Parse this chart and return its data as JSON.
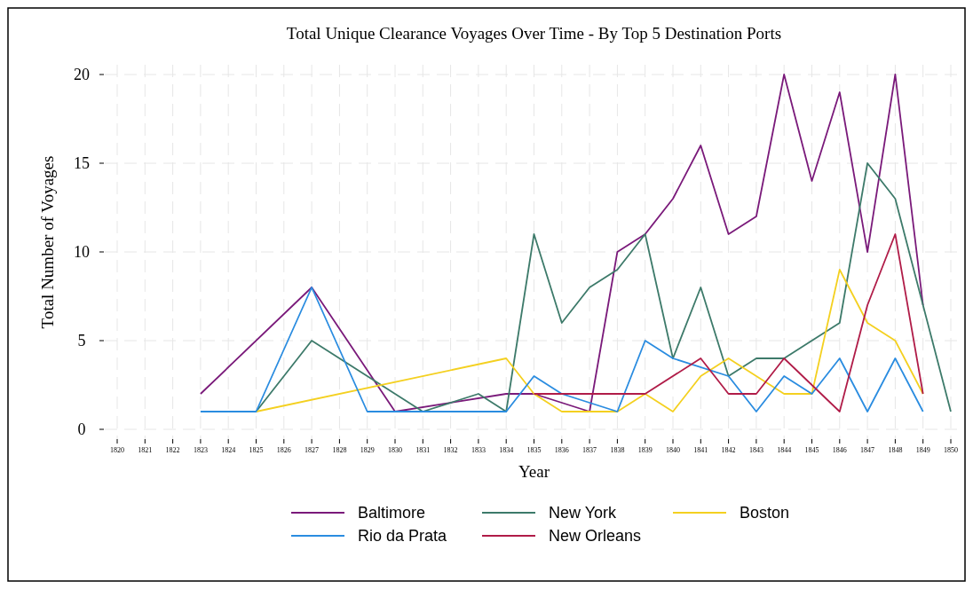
{
  "chart_data": {
    "type": "line",
    "title": "Total Unique Clearance Voyages Over Time - By Top 5 Destination Ports",
    "xlabel": "Year",
    "ylabel": "Total Number of Voyages",
    "xlim": [
      1820,
      1850
    ],
    "xticks": [
      1820,
      1821,
      1822,
      1823,
      1824,
      1825,
      1826,
      1827,
      1828,
      1829,
      1830,
      1831,
      1832,
      1833,
      1834,
      1835,
      1836,
      1837,
      1838,
      1839,
      1840,
      1841,
      1842,
      1843,
      1844,
      1845,
      1846,
      1847,
      1848,
      1849,
      1850
    ],
    "ylim": [
      0,
      20
    ],
    "yticks": [
      0,
      5,
      10,
      15,
      20
    ],
    "grid": true,
    "legend": "bottom",
    "line_style": "solid",
    "marker": "none",
    "series": [
      {
        "name": "Baltimore",
        "color": "#7a1a7a",
        "x": [
          1823,
          1827,
          1830,
          1834,
          1835,
          1837,
          1838,
          1839,
          1840,
          1841,
          1842,
          1843,
          1844,
          1845,
          1846,
          1847,
          1848,
          1849
        ],
        "values": [
          2,
          8,
          1,
          2,
          2,
          1,
          10,
          11,
          13,
          16,
          11,
          12,
          20,
          14,
          19,
          10,
          20,
          7
        ]
      },
      {
        "name": "New York",
        "color": "#3d7a6a",
        "x": [
          1825,
          1827,
          1831,
          1833,
          1834,
          1835,
          1836,
          1837,
          1838,
          1839,
          1840,
          1841,
          1842,
          1843,
          1844,
          1846,
          1847,
          1848,
          1850
        ],
        "values": [
          1,
          5,
          1,
          2,
          1,
          11,
          6,
          8,
          9,
          11,
          4,
          8,
          3,
          4,
          4,
          6,
          15,
          13,
          1
        ]
      },
      {
        "name": "Boston",
        "color": "#f4d020",
        "x": [
          1825,
          1834,
          1835,
          1836,
          1837,
          1838,
          1839,
          1840,
          1841,
          1842,
          1843,
          1844,
          1845,
          1846,
          1847,
          1848,
          1849
        ],
        "values": [
          1,
          4,
          2,
          1,
          1,
          1,
          2,
          1,
          3,
          4,
          3,
          2,
          2,
          9,
          6,
          5,
          2
        ]
      },
      {
        "name": "Rio da Prata",
        "color": "#2a8ce0",
        "x": [
          1823,
          1824,
          1825,
          1827,
          1829,
          1830,
          1831,
          1832,
          1833,
          1834,
          1835,
          1836,
          1838,
          1839,
          1840,
          1842,
          1843,
          1844,
          1845,
          1846,
          1847,
          1848,
          1849
        ],
        "values": [
          1,
          1,
          1,
          8,
          1,
          1,
          1,
          1,
          1,
          1,
          3,
          2,
          1,
          5,
          4,
          3,
          1,
          3,
          2,
          4,
          1,
          4,
          1
        ]
      },
      {
        "name": "New Orleans",
        "color": "#b01c48",
        "x": [
          1835,
          1836,
          1837,
          1838,
          1839,
          1841,
          1842,
          1843,
          1844,
          1846,
          1847,
          1848,
          1849
        ],
        "values": [
          2,
          2,
          2,
          2,
          2,
          4,
          2,
          2,
          4,
          1,
          7,
          11,
          2
        ]
      }
    ]
  }
}
